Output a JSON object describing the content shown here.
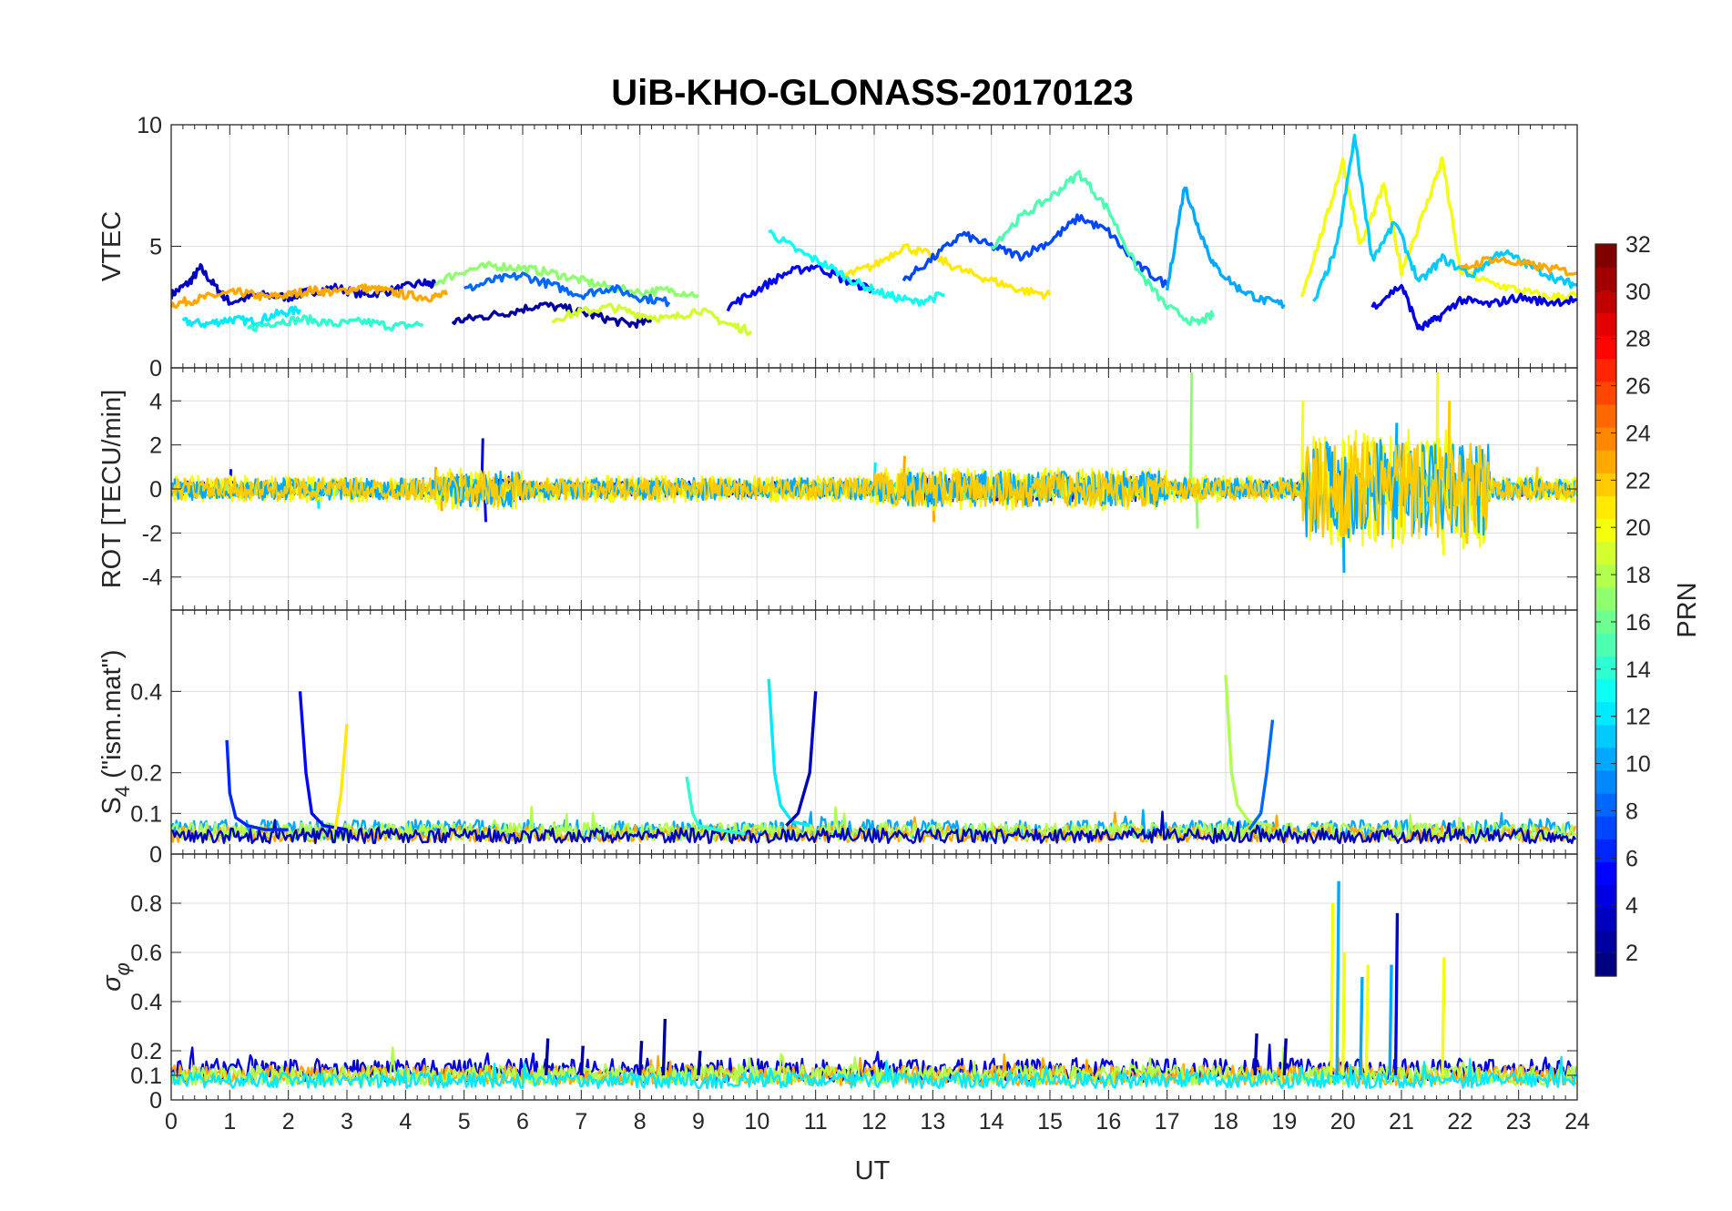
{
  "chart_data": {
    "type": "line",
    "title": "UiB-KHO-GLONASS-20170123",
    "xlabel": "UT",
    "xlim": [
      0,
      24
    ],
    "xticks": [
      "0",
      "1",
      "2",
      "3",
      "4",
      "5",
      "6",
      "7",
      "8",
      "9",
      "10",
      "11",
      "12",
      "13",
      "14",
      "15",
      "16",
      "17",
      "18",
      "19",
      "20",
      "21",
      "22",
      "23",
      "24"
    ],
    "grid": true,
    "colormap": "jet",
    "colorbar": {
      "label": "PRN",
      "range": [
        1,
        32
      ],
      "ticks": [
        "2",
        "4",
        "6",
        "8",
        "10",
        "12",
        "14",
        "16",
        "18",
        "20",
        "22",
        "24",
        "26",
        "28",
        "30",
        "32"
      ],
      "placement": "right"
    },
    "panels": [
      {
        "key": "vtec",
        "ylabel": "VTEC",
        "ylim": [
          0,
          10
        ],
        "yticks": [
          "0",
          "5",
          "10"
        ],
        "series": [
          {
            "prn": 3,
            "x": [
              0.0,
              0.3,
              0.5,
              0.8,
              1.0,
              1.5,
              2.0,
              2.3,
              2.8,
              3.3,
              3.8,
              4.3,
              4.5
            ],
            "y": [
              3.0,
              3.5,
              4.1,
              3.2,
              2.7,
              3.0,
              2.9,
              3.1,
              3.3,
              3.0,
              3.2,
              3.5,
              3.4
            ]
          },
          {
            "prn": 12,
            "x": [
              0.2,
              0.6,
              1.0,
              1.4,
              1.8,
              2.2
            ],
            "y": [
              1.9,
              1.8,
              2.0,
              1.9,
              2.2,
              2.4
            ]
          },
          {
            "prn": 23,
            "x": [
              0.0,
              0.4,
              0.8,
              1.2,
              1.6,
              2.0,
              2.4,
              2.8,
              3.2,
              3.6,
              4.0,
              4.4,
              4.7
            ],
            "y": [
              2.6,
              2.8,
              3.0,
              3.1,
              2.9,
              3.0,
              3.2,
              3.1,
              3.3,
              3.2,
              3.0,
              2.9,
              3.0
            ]
          },
          {
            "prn": 14,
            "x": [
              1.3,
              1.8,
              2.3,
              2.8,
              3.3,
              3.8,
              4.3
            ],
            "y": [
              1.6,
              1.9,
              2.0,
              1.8,
              1.9,
              1.7,
              1.8
            ]
          },
          {
            "prn": 2,
            "x": [
              4.8,
              5.3,
              5.8,
              6.3,
              6.8,
              7.3,
              7.8,
              8.2
            ],
            "y": [
              1.9,
              2.1,
              2.3,
              2.6,
              2.4,
              2.1,
              1.8,
              1.9
            ]
          },
          {
            "prn": 17,
            "x": [
              4.5,
              5.0,
              5.5,
              6.0,
              6.5,
              7.0,
              7.5,
              8.0,
              8.5,
              9.0
            ],
            "y": [
              3.5,
              4.0,
              4.2,
              4.1,
              3.9,
              3.6,
              3.3,
              3.1,
              3.2,
              3.0
            ]
          },
          {
            "prn": 8,
            "x": [
              5.0,
              5.5,
              6.0,
              6.5,
              7.0,
              7.5,
              8.0,
              8.5
            ],
            "y": [
              3.2,
              3.6,
              3.8,
              3.4,
              3.0,
              3.3,
              2.9,
              2.7
            ]
          },
          {
            "prn": 19,
            "x": [
              6.5,
              7.0,
              7.5,
              8.0,
              8.5,
              9.0,
              9.5,
              9.9
            ],
            "y": [
              2.0,
              2.3,
              2.5,
              2.2,
              2.0,
              2.4,
              1.8,
              1.5
            ]
          },
          {
            "prn": 5,
            "x": [
              9.5,
              10.0,
              10.5,
              11.0,
              11.5,
              12.0
            ],
            "y": [
              2.5,
              3.2,
              3.9,
              4.2,
              3.6,
              3.2
            ]
          },
          {
            "prn": 13,
            "x": [
              10.2,
              10.7,
              11.2,
              11.7,
              12.2,
              12.7,
              13.2
            ],
            "y": [
              5.6,
              4.8,
              4.2,
              3.5,
              3.0,
              2.7,
              3.0
            ]
          },
          {
            "prn": 21,
            "x": [
              11.5,
              12.0,
              12.5,
              13.0,
              13.5,
              14.0,
              14.5,
              15.0
            ],
            "y": [
              3.8,
              4.2,
              5.0,
              4.6,
              4.0,
              3.6,
              3.2,
              3.0
            ]
          },
          {
            "prn": 7,
            "x": [
              12.5,
              13.0,
              13.5,
              14.0,
              14.5,
              15.0,
              15.5,
              16.0,
              16.5,
              17.0
            ],
            "y": [
              3.6,
              4.5,
              5.5,
              5.0,
              4.6,
              5.2,
              6.2,
              5.6,
              4.2,
              3.4
            ]
          },
          {
            "prn": 15,
            "x": [
              14.0,
              14.5,
              15.0,
              15.5,
              16.0,
              16.5,
              17.0,
              17.5,
              17.8
            ],
            "y": [
              5.0,
              6.2,
              7.0,
              8.0,
              6.5,
              4.0,
              2.5,
              1.8,
              2.2
            ]
          },
          {
            "prn": 10,
            "x": [
              17.0,
              17.3,
              17.5,
              17.8,
              18.2,
              18.6,
              19.0
            ],
            "y": [
              3.2,
              7.5,
              6.0,
              4.2,
              3.3,
              2.8,
              2.6
            ]
          },
          {
            "prn": 20,
            "x": [
              19.3,
              19.7,
              20.0,
              20.3,
              20.7,
              21.0,
              21.4,
              21.7,
              22.0,
              22.5,
              23.0,
              23.5,
              24.0
            ],
            "y": [
              3.0,
              6.0,
              8.5,
              5.0,
              7.5,
              4.0,
              6.5,
              8.6,
              4.0,
              3.5,
              3.2,
              2.9,
              3.0
            ]
          },
          {
            "prn": 11,
            "x": [
              19.5,
              19.9,
              20.2,
              20.5,
              20.9,
              21.3,
              21.7,
              22.2,
              22.7,
              23.2,
              23.7,
              24.0
            ],
            "y": [
              2.6,
              5.0,
              9.5,
              4.5,
              6.0,
              3.5,
              4.5,
              3.8,
              4.8,
              4.2,
              3.6,
              3.4
            ]
          },
          {
            "prn": 4,
            "x": [
              20.5,
              21.0,
              21.3,
              21.6,
              22.0,
              22.5,
              23.0,
              23.5,
              24.0
            ],
            "y": [
              2.5,
              3.4,
              1.6,
              2.0,
              2.8,
              2.6,
              2.9,
              2.7,
              2.8
            ]
          },
          {
            "prn": 23,
            "x": [
              22.0,
              22.5,
              23.0,
              23.5,
              24.0
            ],
            "y": [
              4.0,
              4.5,
              4.3,
              4.1,
              3.9
            ]
          }
        ]
      },
      {
        "key": "rot",
        "ylabel": "ROT [TECU/min]",
        "ylim": [
          -5.5,
          5.5
        ],
        "yticks": [
          "-4",
          "-2",
          "0",
          "2",
          "4"
        ],
        "series": [
          {
            "prn": 4,
            "amp": 0.35,
            "spikes": [
              [
                1.0,
                0.9
              ],
              [
                5.3,
                2.3
              ],
              [
                5.35,
                -1.5
              ],
              [
                13.0,
                -1.0
              ]
            ]
          },
          {
            "prn": 23,
            "amp": 0.3,
            "spikes": [
              [
                4.5,
                1.0
              ],
              [
                4.6,
                -1.0
              ],
              [
                12.5,
                1.5
              ],
              [
                13.0,
                -1.5
              ]
            ]
          },
          {
            "prn": 12,
            "amp": 0.3,
            "spikes": [
              [
                2.5,
                -0.9
              ],
              [
                12.0,
                1.2
              ]
            ]
          },
          {
            "prn": 17,
            "amp": 0.3,
            "spikes": [
              [
                17.4,
                5.3
              ],
              [
                17.5,
                -1.8
              ]
            ]
          },
          {
            "prn": 20,
            "amp": 0.6,
            "spikes": [
              [
                19.3,
                4.0
              ],
              [
                20.0,
                -3.0
              ],
              [
                21.6,
                5.3
              ],
              [
                21.7,
                -3.0
              ]
            ]
          },
          {
            "prn": 10,
            "amp": 0.5,
            "spikes": [
              [
                20.0,
                -3.8
              ],
              [
                20.9,
                3.0
              ]
            ]
          },
          {
            "prn": 22,
            "amp": 0.5,
            "spikes": [
              [
                21.8,
                4.0
              ],
              [
                22.1,
                -2.5
              ],
              [
                23.3,
                1.0
              ]
            ]
          }
        ]
      },
      {
        "key": "s4",
        "ylabel": "S4 (\"ism.mat\")",
        "ylim": [
          0,
          0.6
        ],
        "yticks": [
          "0",
          "0.1",
          "0.2",
          "0.4"
        ],
        "series": [
          {
            "prn": 6,
            "x": [
              0.95,
              1.0,
              1.1,
              1.3,
              1.6,
              2.0
            ],
            "y": [
              0.28,
              0.15,
              0.09,
              0.07,
              0.06,
              0.06
            ]
          },
          {
            "prn": 5,
            "x": [
              2.2,
              2.3,
              2.4,
              2.6,
              3.0
            ],
            "y": [
              0.4,
              0.2,
              0.1,
              0.07,
              0.06
            ]
          },
          {
            "prn": 21,
            "x": [
              2.8,
              2.9,
              3.0
            ],
            "y": [
              0.06,
              0.15,
              0.32
            ]
          },
          {
            "prn": 14,
            "x": [
              8.8,
              8.9,
              9.0,
              9.3,
              9.8
            ],
            "y": [
              0.19,
              0.1,
              0.07,
              0.06,
              0.05
            ]
          },
          {
            "prn": 12,
            "x": [
              10.2,
              10.3,
              10.4,
              10.6,
              10.9
            ],
            "y": [
              0.43,
              0.2,
              0.12,
              0.08,
              0.07
            ]
          },
          {
            "prn": 3,
            "x": [
              10.5,
              10.7,
              10.9,
              11.0
            ],
            "y": [
              0.07,
              0.1,
              0.2,
              0.4
            ]
          },
          {
            "prn": 18,
            "x": [
              18.0,
              18.1,
              18.2,
              18.4,
              18.8
            ],
            "y": [
              0.44,
              0.2,
              0.12,
              0.08,
              0.07
            ]
          },
          {
            "prn": 8,
            "x": [
              18.4,
              18.6,
              18.7,
              18.8
            ],
            "y": [
              0.06,
              0.1,
              0.2,
              0.33
            ]
          }
        ],
        "baseline": [
          {
            "prn": 10,
            "level": 0.06
          },
          {
            "prn": 23,
            "level": 0.05
          },
          {
            "prn": 18,
            "level": 0.055
          },
          {
            "prn": 3,
            "level": 0.045
          }
        ]
      },
      {
        "key": "sigma",
        "ylabel": "σφ",
        "ylim": [
          0,
          1
        ],
        "yticks": [
          "0",
          "0.1",
          "0.2",
          "0.4",
          "0.6",
          "0.8"
        ],
        "series": [
          {
            "prn": 2,
            "x": [
              6.4,
              7.0,
              8.0,
              8.4,
              9.0,
              18.5,
              19.0
            ],
            "y": [
              0.25,
              0.22,
              0.24,
              0.33,
              0.2,
              0.27,
              0.25
            ]
          },
          {
            "prn": 20,
            "x": [
              19.8,
              20.0,
              20.4,
              21.7
            ],
            "y": [
              0.8,
              0.6,
              0.55,
              0.58
            ]
          },
          {
            "prn": 10,
            "x": [
              19.9,
              20.3,
              20.8
            ],
            "y": [
              0.89,
              0.5,
              0.55
            ]
          },
          {
            "prn": 4,
            "x": [
              20.9
            ],
            "y": [
              0.76
            ]
          }
        ],
        "baseline": [
          {
            "prn": 4,
            "level": 0.12
          },
          {
            "prn": 23,
            "level": 0.1
          },
          {
            "prn": 18,
            "level": 0.1
          },
          {
            "prn": 12,
            "level": 0.08
          }
        ]
      }
    ]
  }
}
